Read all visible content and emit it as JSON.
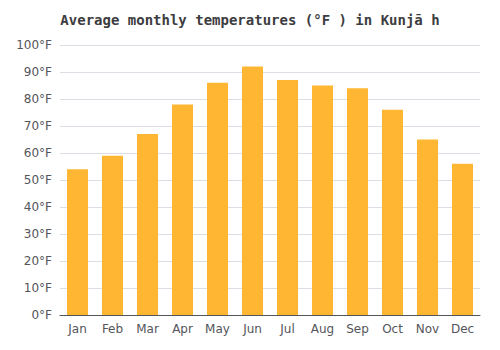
{
  "chart_data": {
    "type": "bar",
    "title": "Average monthly temperatures (°F ) in Kunjā h",
    "categories": [
      "Jan",
      "Feb",
      "Mar",
      "Apr",
      "May",
      "Jun",
      "Jul",
      "Aug",
      "Sep",
      "Oct",
      "Nov",
      "Dec"
    ],
    "values": [
      54,
      59,
      67,
      78,
      86,
      92,
      87,
      85,
      84,
      76,
      65,
      56
    ],
    "color": "#FFB733",
    "ylim": [
      0,
      100
    ],
    "yticks": [
      {
        "value": 0,
        "label": "0°F"
      },
      {
        "value": 10,
        "label": "10°F"
      },
      {
        "value": 20,
        "label": "20°F"
      },
      {
        "value": 30,
        "label": "30°F"
      },
      {
        "value": 40,
        "label": "40°F"
      },
      {
        "value": 50,
        "label": "50°F"
      },
      {
        "value": 60,
        "label": "60°F"
      },
      {
        "value": 70,
        "label": "70°F"
      },
      {
        "value": 80,
        "label": "80°F"
      },
      {
        "value": 90,
        "label": "90°F"
      },
      {
        "value": 100,
        "label": "100°F"
      }
    ],
    "grid": true
  }
}
